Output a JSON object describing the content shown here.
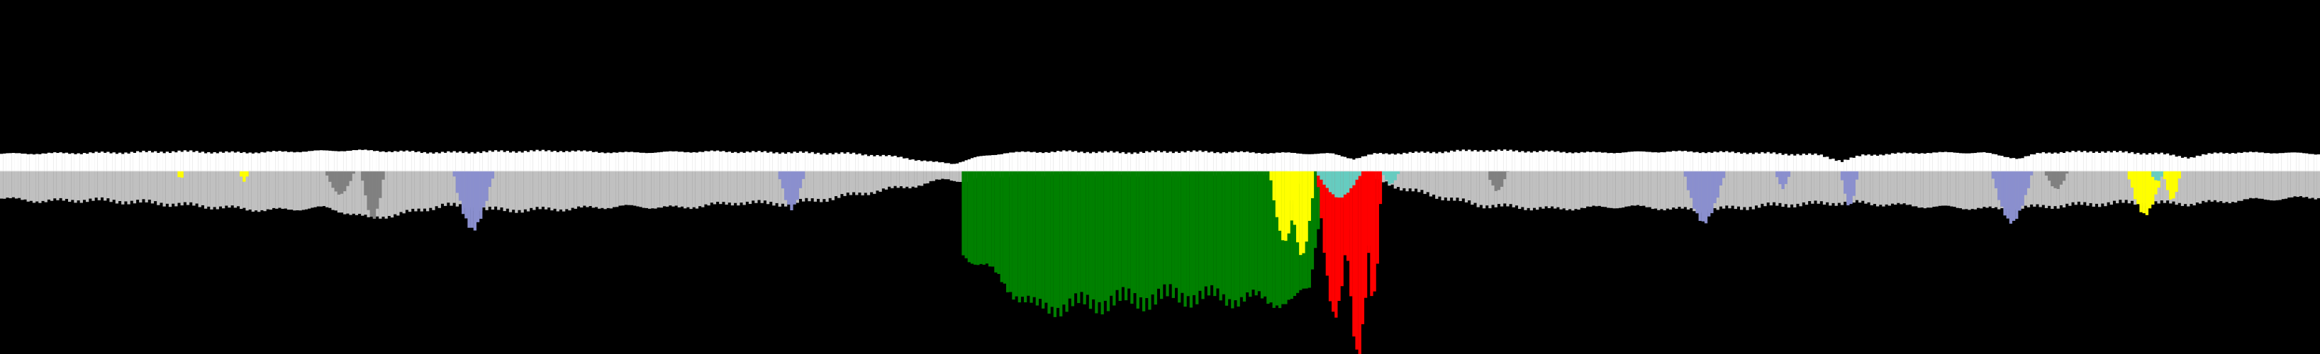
{
  "chart_data": {
    "type": "bar",
    "title": "",
    "xlabel": "",
    "ylabel": "",
    "grid": false,
    "legend": "none",
    "x_range": [
      0,
      1568
    ],
    "background": "#000000",
    "baseline": 0,
    "n_columns": 784,
    "positive_ylim": [
      0,
      17
    ],
    "negative_ylim": [
      0,
      140
    ],
    "band_colors": {
      "upper": "#ffffff",
      "lower": "#c0c0c0",
      "dark": "#808080",
      "lavender": "#8a8fce",
      "green": "#008000",
      "yellow": "#ffff00",
      "red": "#ff0000",
      "cyan": "#66ccc0"
    },
    "upper_profile": [
      [
        0,
        12
      ],
      [
        40,
        12.5
      ],
      [
        80,
        13
      ],
      [
        120,
        14
      ],
      [
        160,
        13
      ],
      [
        200,
        14
      ],
      [
        240,
        15
      ],
      [
        300,
        13
      ],
      [
        340,
        14
      ],
      [
        380,
        14.5
      ],
      [
        420,
        13
      ],
      [
        480,
        14
      ],
      [
        540,
        13
      ],
      [
        580,
        12
      ],
      [
        610,
        9
      ],
      [
        630,
        5
      ],
      [
        645,
        4
      ],
      [
        660,
        9
      ],
      [
        680,
        13
      ],
      [
        720,
        14
      ],
      [
        760,
        13
      ],
      [
        800,
        14
      ],
      [
        850,
        13
      ],
      [
        900,
        12
      ],
      [
        915,
        8
      ],
      [
        930,
        12
      ],
      [
        960,
        13
      ],
      [
        1000,
        15
      ],
      [
        1040,
        14
      ],
      [
        1080,
        13
      ],
      [
        1130,
        14
      ],
      [
        1180,
        13
      ],
      [
        1230,
        11
      ],
      [
        1245,
        6
      ],
      [
        1260,
        11
      ],
      [
        1300,
        13
      ],
      [
        1340,
        13
      ],
      [
        1365,
        8
      ],
      [
        1380,
        13
      ],
      [
        1420,
        14
      ],
      [
        1460,
        12
      ],
      [
        1480,
        9
      ],
      [
        1500,
        13
      ],
      [
        1540,
        13
      ],
      [
        1568,
        12
      ]
    ],
    "lower_profile": [
      [
        0,
        21
      ],
      [
        30,
        23
      ],
      [
        60,
        22
      ],
      [
        100,
        24
      ],
      [
        140,
        27
      ],
      [
        180,
        30
      ],
      [
        220,
        28
      ],
      [
        250,
        36
      ],
      [
        270,
        33
      ],
      [
        300,
        26
      ],
      [
        340,
        30
      ],
      [
        380,
        29
      ],
      [
        420,
        27
      ],
      [
        460,
        28
      ],
      [
        500,
        24
      ],
      [
        530,
        25
      ],
      [
        560,
        21
      ],
      [
        600,
        14
      ],
      [
        625,
        10
      ],
      [
        640,
        6
      ],
      [
        655,
        8
      ],
      [
        666,
        4
      ],
      [
        700,
        2
      ],
      [
        760,
        2
      ],
      [
        820,
        2
      ],
      [
        860,
        2
      ],
      [
        900,
        2
      ],
      [
        930,
        6
      ],
      [
        950,
        14
      ],
      [
        1000,
        26
      ],
      [
        1050,
        29
      ],
      [
        1100,
        27
      ],
      [
        1150,
        30
      ],
      [
        1200,
        26
      ],
      [
        1250,
        24
      ],
      [
        1300,
        27
      ],
      [
        1350,
        29
      ],
      [
        1400,
        26
      ],
      [
        1440,
        24
      ],
      [
        1480,
        25
      ],
      [
        1520,
        22
      ],
      [
        1568,
        20
      ]
    ],
    "overlay_bands": [
      {
        "name": "lavender",
        "color": "#8a8fce",
        "peaks": [
          [
            320,
            45,
            14
          ],
          [
            535,
            30,
            9
          ],
          [
            1152,
            40,
            14
          ],
          [
            1205,
            13,
            5
          ],
          [
            1250,
            28,
            6
          ],
          [
            1360,
            40,
            14
          ]
        ]
      },
      {
        "name": "dark",
        "color": "#808080",
        "peaks": [
          [
            230,
            18,
            10
          ],
          [
            252,
            36,
            8
          ],
          [
            1012,
            16,
            7
          ],
          [
            1390,
            14,
            8
          ]
        ]
      },
      {
        "name": "green",
        "color": "#008000",
        "ranges": [
          [
            650,
            60
          ],
          [
            700,
            105
          ],
          [
            745,
            100
          ],
          [
            800,
            95
          ],
          [
            850,
            98
          ],
          [
            875,
            100
          ],
          [
            885,
            90
          ]
        ]
      },
      {
        "name": "yellow",
        "color": "#ffff00",
        "peaks": [
          [
            868,
            55,
            10
          ],
          [
            880,
            64,
            9
          ],
          [
            1450,
            34,
            12
          ],
          [
            1468,
            22,
            6
          ],
          [
            122,
            6,
            3
          ],
          [
            165,
            8,
            3
          ]
        ]
      },
      {
        "name": "red",
        "color": "#ff0000",
        "peaks": [
          [
            902,
            110,
            12
          ],
          [
            918,
            146,
            10
          ],
          [
            928,
            100,
            6
          ]
        ]
      },
      {
        "name": "cyan",
        "color": "#66ccc0",
        "peaks": [
          [
            905,
            20,
            16
          ],
          [
            940,
            10,
            6
          ],
          [
            1458,
            8,
            5
          ]
        ]
      }
    ]
  }
}
